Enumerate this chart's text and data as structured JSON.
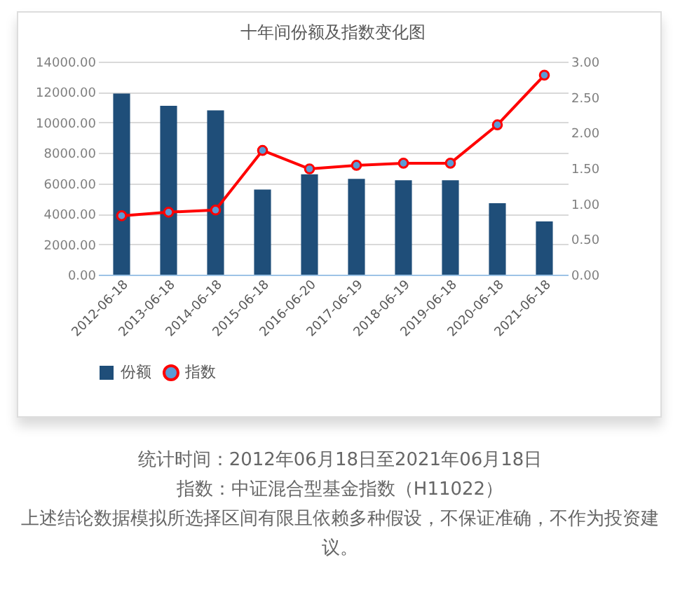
{
  "chart_data": {
    "type": "bar",
    "title": "十年间份额及指数变化图",
    "categories": [
      "2012-06-18",
      "2013-06-18",
      "2014-06-18",
      "2015-06-18",
      "2016-06-20",
      "2017-06-19",
      "2018-06-19",
      "2019-06-18",
      "2020-06-18",
      "2021-06-18"
    ],
    "series": [
      {
        "name": "份额",
        "color": "#1f4e79",
        "values": [
          11900,
          11100,
          10800,
          5600,
          6600,
          6300,
          6200,
          6200,
          4700,
          3500
        ]
      },
      {
        "name": "指数",
        "type": "line",
        "axis": "y2",
        "color": "#ff0000",
        "values": [
          0.83,
          0.88,
          0.91,
          1.75,
          1.49,
          1.54,
          1.57,
          1.57,
          2.11,
          2.81
        ]
      }
    ],
    "ylim": [
      0,
      14000
    ],
    "yticks": [
      {
        "value": 0,
        "label": "0.00"
      },
      {
        "value": 2000,
        "label": "2000.00"
      },
      {
        "value": 4000,
        "label": "4000.00"
      },
      {
        "value": 6000,
        "label": "6000.00"
      },
      {
        "value": 8000,
        "label": "8000.00"
      },
      {
        "value": 10000,
        "label": "10000.00"
      },
      {
        "value": 12000,
        "label": "12000.00"
      },
      {
        "value": 14000,
        "label": "14000.00"
      }
    ],
    "y2lim": [
      0,
      3
    ],
    "y2ticks": [
      {
        "value": 0,
        "label": "0.00"
      },
      {
        "value": 0.5,
        "label": "0.50"
      },
      {
        "value": 1,
        "label": "1.00"
      },
      {
        "value": 1.5,
        "label": "1.50"
      },
      {
        "value": 2,
        "label": "2.00"
      },
      {
        "value": 2.5,
        "label": "2.50"
      },
      {
        "value": 3,
        "label": "3.00"
      }
    ],
    "grid": "y",
    "legend": "bottom",
    "marker": "circle",
    "annotations": [
      "统计时间：2012年06月18日至2021年06月18日",
      "指数：中证混合型基金指数（H11022）",
      "上述结论数据模拟所选择区间有限且依赖多种假设，不保证准确，不作为投资建议。"
    ]
  }
}
